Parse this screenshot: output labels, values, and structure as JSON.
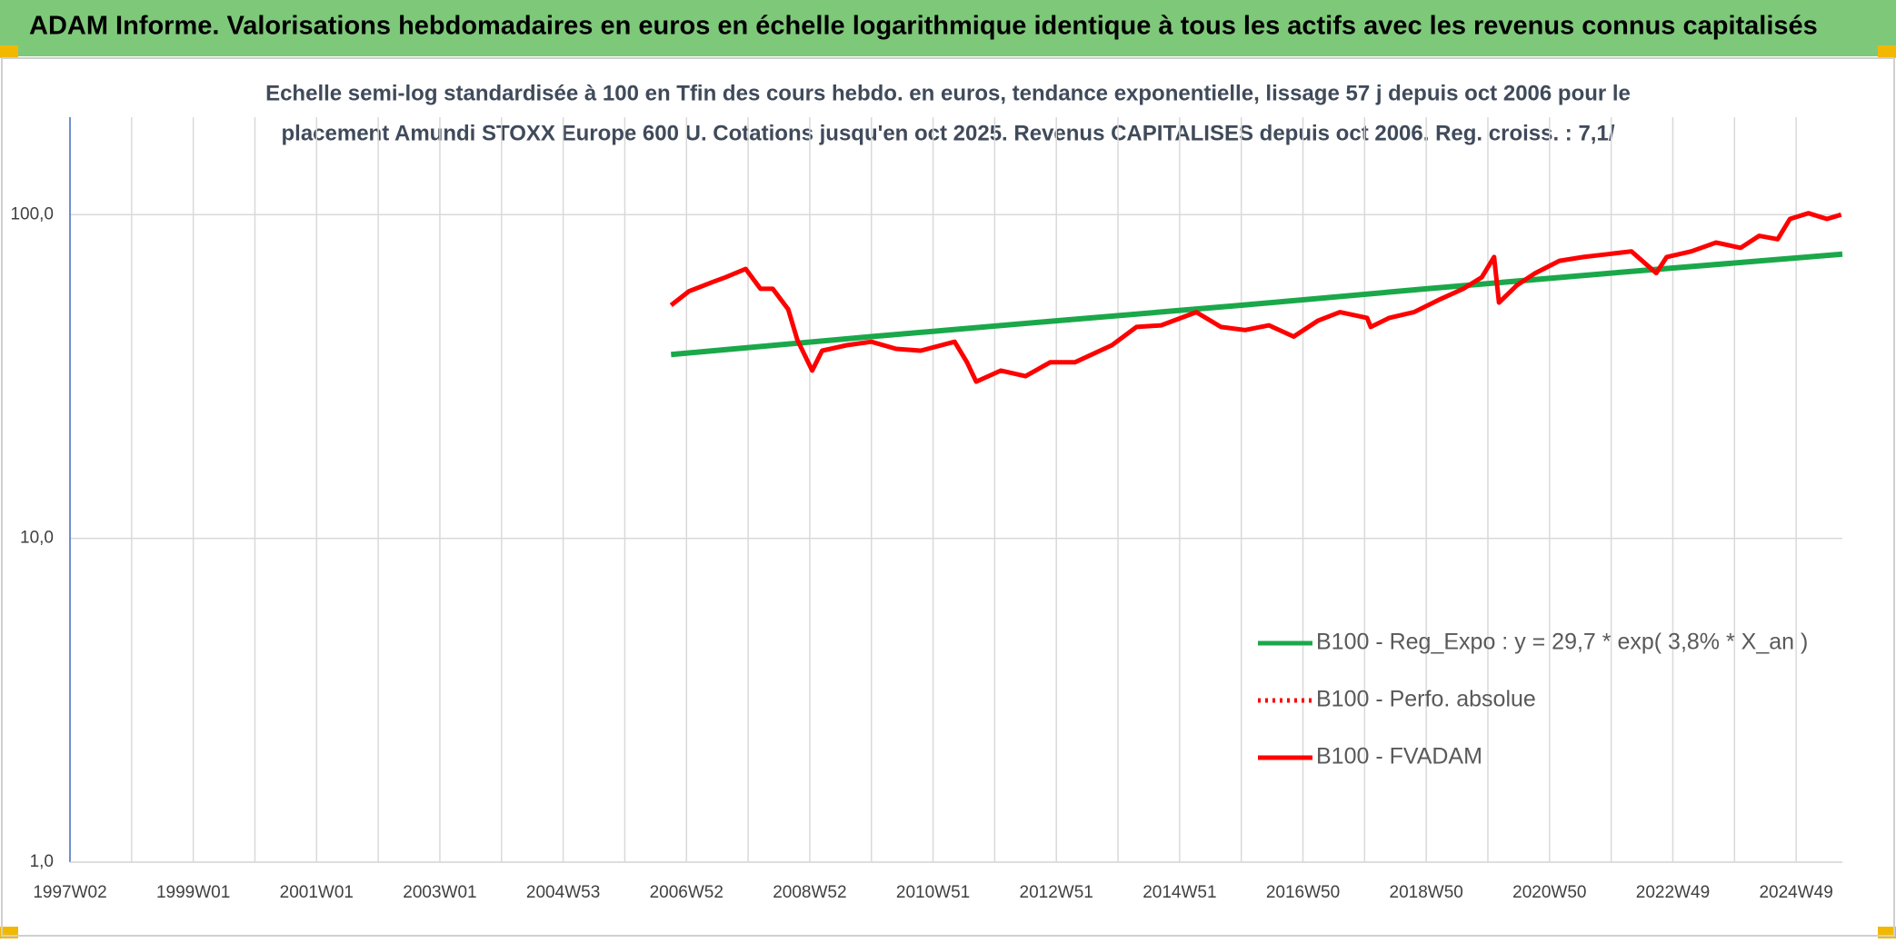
{
  "header": {
    "title": "ADAM Informe. Valorisations hebdomadaires en euros en échelle logarithmique identique à tous les actifs avec les revenus connus capitalisés"
  },
  "chart_data": {
    "type": "line",
    "title": "Echelle semi-log standardisée à 100 en Tfin des cours hebdo. en euros, tendance exponentielle, lissage 57 j depuis oct 2006 pour le",
    "subtitle": "placement Amundi STOXX Europe 600 U. Cotations jusqu'en oct 2025. Revenus CAPITALISES depuis oct 2006. Reg. croiss. : 7,1/",
    "log_scale": true,
    "grid": true,
    "legend": "lower right",
    "xlim": [
      1997.0,
      2025.75
    ],
    "xticks": [
      {
        "value": 1997.0,
        "label": "1997W02"
      },
      {
        "value": 1999.0,
        "label": "1999W01"
      },
      {
        "value": 2001.0,
        "label": "2001W01"
      },
      {
        "value": 2003.0,
        "label": "2003W01"
      },
      {
        "value": 2005.0,
        "label": "2004W53"
      },
      {
        "value": 2007.0,
        "label": "2006W52"
      },
      {
        "value": 2009.0,
        "label": "2008W52"
      },
      {
        "value": 2011.0,
        "label": "2010W51"
      },
      {
        "value": 2013.0,
        "label": "2012W51"
      },
      {
        "value": 2015.0,
        "label": "2014W51"
      },
      {
        "value": 2017.0,
        "label": "2016W50"
      },
      {
        "value": 2019.0,
        "label": "2018W50"
      },
      {
        "value": 2021.0,
        "label": "2020W50"
      },
      {
        "value": 2023.0,
        "label": "2022W49"
      },
      {
        "value": 2025.0,
        "label": "2024W49"
      }
    ],
    "xminorticks": [
      1998,
      2000,
      2002,
      2004,
      2006,
      2008,
      2010,
      2012,
      2014,
      2016,
      2018,
      2020,
      2022,
      2024
    ],
    "ylim": [
      1,
      200
    ],
    "yticks": [
      {
        "value": 1,
        "label": "1,0"
      },
      {
        "value": 10,
        "label": "10,0"
      },
      {
        "value": 100,
        "label": "100,0"
      }
    ],
    "series": [
      {
        "name": "B100 - Reg_Expo : y = 29,7 * exp( 3,8% *  X_an )",
        "color": "#1aa84a",
        "dash": "solid",
        "width": 6,
        "x": [
          2006.75,
          2010.0,
          2013.0,
          2016.0,
          2019.0,
          2022.0,
          2025.75
        ],
        "values": [
          37,
          42,
          47,
          52.5,
          59,
          66,
          75.5
        ]
      },
      {
        "name": "B100 - Perfo. absolue",
        "color": "#ff0000",
        "dash": "dotted",
        "width": 4,
        "x": [],
        "values": []
      },
      {
        "name": "B100 - FVADAM",
        "color": "#ff0000",
        "dash": "solid",
        "width": 5,
        "x": [
          2006.75,
          2007.04,
          2007.43,
          2007.63,
          2007.96,
          2008.2,
          2008.4,
          2008.65,
          2008.8,
          2009.04,
          2009.2,
          2009.6,
          2010.0,
          2010.4,
          2010.8,
          2011.35,
          2011.55,
          2011.7,
          2012.1,
          2012.5,
          2012.9,
          2013.3,
          2013.9,
          2014.3,
          2014.7,
          2015.27,
          2015.67,
          2016.06,
          2016.45,
          2016.85,
          2017.24,
          2017.6,
          2018.04,
          2018.1,
          2018.4,
          2018.8,
          2019.2,
          2019.6,
          2019.9,
          2020.1,
          2020.18,
          2020.47,
          2020.77,
          2021.16,
          2021.55,
          2021.94,
          2022.33,
          2022.73,
          2022.9,
          2023.3,
          2023.7,
          2024.1,
          2024.4,
          2024.7,
          2024.9,
          2025.2,
          2025.5,
          2025.73
        ],
        "values": [
          52.5,
          58,
          62,
          64,
          68,
          59,
          59,
          51,
          41,
          33,
          38,
          39.5,
          40.5,
          38.5,
          38,
          40.5,
          35,
          30.5,
          33,
          31.7,
          35,
          35,
          39.5,
          45,
          45.5,
          50,
          45,
          44,
          45.5,
          42,
          47,
          50,
          48,
          45,
          48,
          50,
          54.5,
          59,
          64,
          74,
          53.5,
          60.5,
          66,
          72,
          74,
          75.5,
          77,
          66,
          74,
          77,
          82,
          79,
          86,
          84,
          97,
          101,
          97,
          100
        ]
      }
    ]
  }
}
